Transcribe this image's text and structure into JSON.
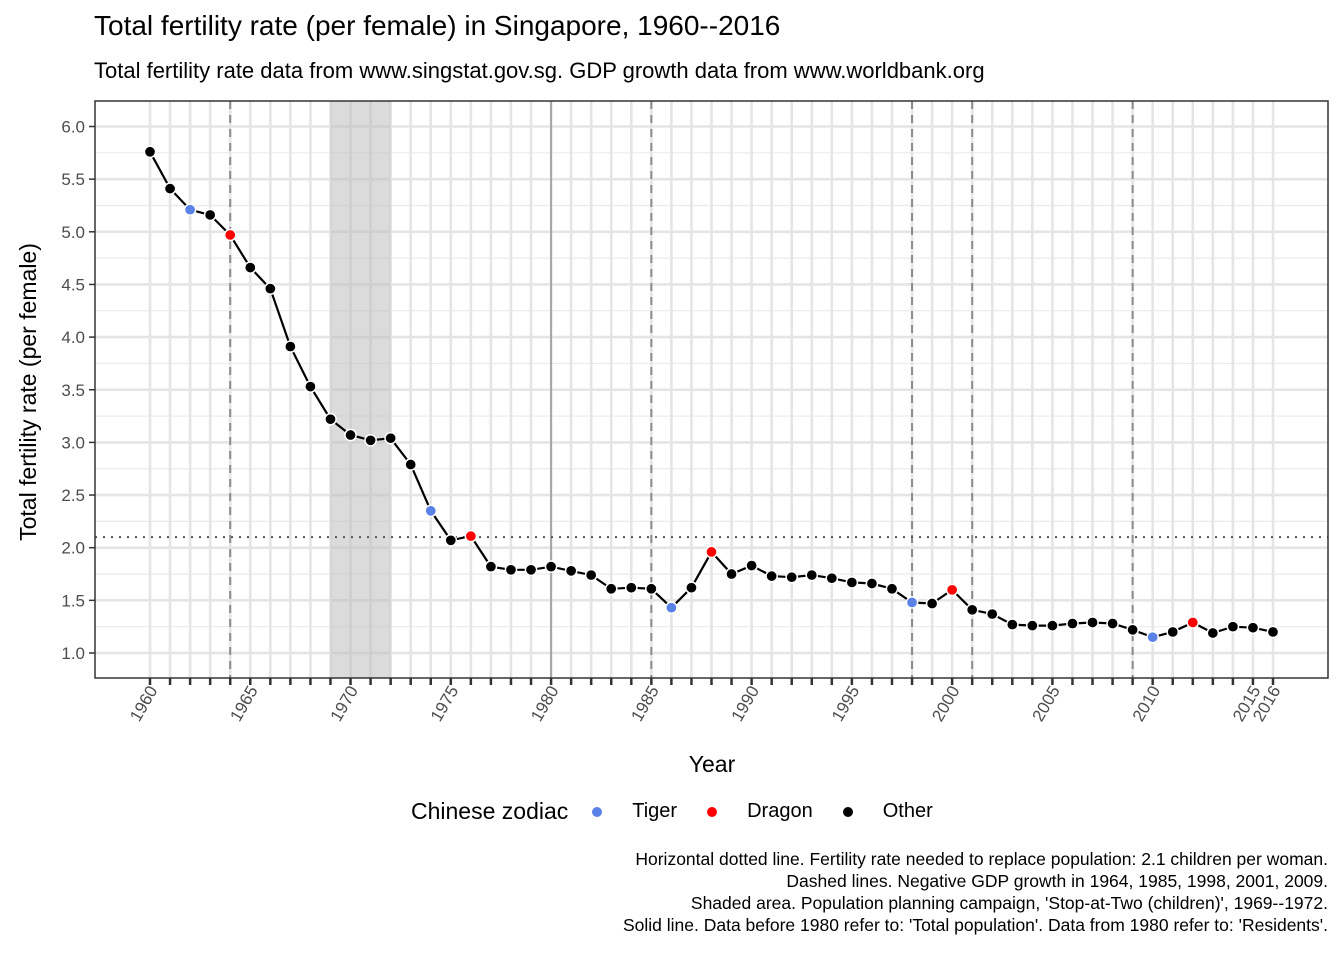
{
  "chart_data": {
    "type": "line",
    "title": "Total fertility rate (per female) in Singapore, 1960--2016",
    "subtitle": "Total fertility rate data from www.singstat.gov.sg. GDP growth data from www.worldbank.org",
    "xlabel": "Year",
    "ylabel": "Total fertility rate (per female)",
    "xlim": [
      1960,
      2016
    ],
    "ylim": [
      0.75,
      6.25
    ],
    "grid": true,
    "x_tick_labels": [
      "1960",
      "1965",
      "1970",
      "1975",
      "1980",
      "1985",
      "1990",
      "1995",
      "2000",
      "2005",
      "2010",
      "2015",
      "2016"
    ],
    "y_tick_labels": [
      "1.0",
      "1.5",
      "2.0",
      "2.5",
      "3.0",
      "3.5",
      "4.0",
      "4.5",
      "5.0",
      "5.5",
      "6.0"
    ],
    "x": [
      1960,
      1961,
      1962,
      1963,
      1964,
      1965,
      1966,
      1967,
      1968,
      1969,
      1970,
      1971,
      1972,
      1973,
      1974,
      1975,
      1976,
      1977,
      1978,
      1979,
      1980,
      1981,
      1982,
      1983,
      1984,
      1985,
      1986,
      1987,
      1988,
      1989,
      1990,
      1991,
      1992,
      1993,
      1994,
      1995,
      1996,
      1997,
      1998,
      1999,
      2000,
      2001,
      2002,
      2003,
      2004,
      2005,
      2006,
      2007,
      2008,
      2009,
      2010,
      2011,
      2012,
      2013,
      2014,
      2015,
      2016
    ],
    "values": [
      5.76,
      5.41,
      5.21,
      5.16,
      4.97,
      4.66,
      4.46,
      3.91,
      3.53,
      3.22,
      3.07,
      3.02,
      3.04,
      2.79,
      2.35,
      2.07,
      2.11,
      1.82,
      1.79,
      1.79,
      1.82,
      1.78,
      1.74,
      1.61,
      1.62,
      1.61,
      1.43,
      1.62,
      1.96,
      1.75,
      1.83,
      1.73,
      1.72,
      1.74,
      1.71,
      1.67,
      1.66,
      1.61,
      1.48,
      1.47,
      1.6,
      1.41,
      1.37,
      1.27,
      1.26,
      1.26,
      1.28,
      1.29,
      1.28,
      1.22,
      1.15,
      1.2,
      1.29,
      1.19,
      1.25,
      1.24,
      1.2
    ],
    "zodiac_tiger_years": [
      1962,
      1974,
      1986,
      1998,
      2010
    ],
    "zodiac_dragon_years": [
      1964,
      1976,
      1988,
      2000,
      2012
    ],
    "replacement_rate": 2.1,
    "negative_gdp_years": [
      1964,
      1985,
      1998,
      2001,
      2009
    ],
    "shaded_range": [
      1969,
      1972
    ],
    "solid_line_year": 1980,
    "legend": {
      "title": "Chinese zodiac",
      "placement": "bottom",
      "entries": [
        {
          "label": "Tiger",
          "color": "#5a82e6"
        },
        {
          "label": "Dragon",
          "color": "#ff0000"
        },
        {
          "label": "Other",
          "color": "#000000"
        }
      ]
    },
    "caption_lines": [
      "Horizontal dotted line. Fertility rate needed to replace population: 2.1 children per woman.",
      "Dashed lines. Negative GDP growth in 1964, 1985, 1998, 2001, 2009.",
      "Shaded area. Population planning campaign, 'Stop-at-Two (children)', 1969--1972.",
      "Solid line. Data before 1980 refer to: 'Total population'. Data from 1980 refer to: 'Residents'."
    ]
  }
}
